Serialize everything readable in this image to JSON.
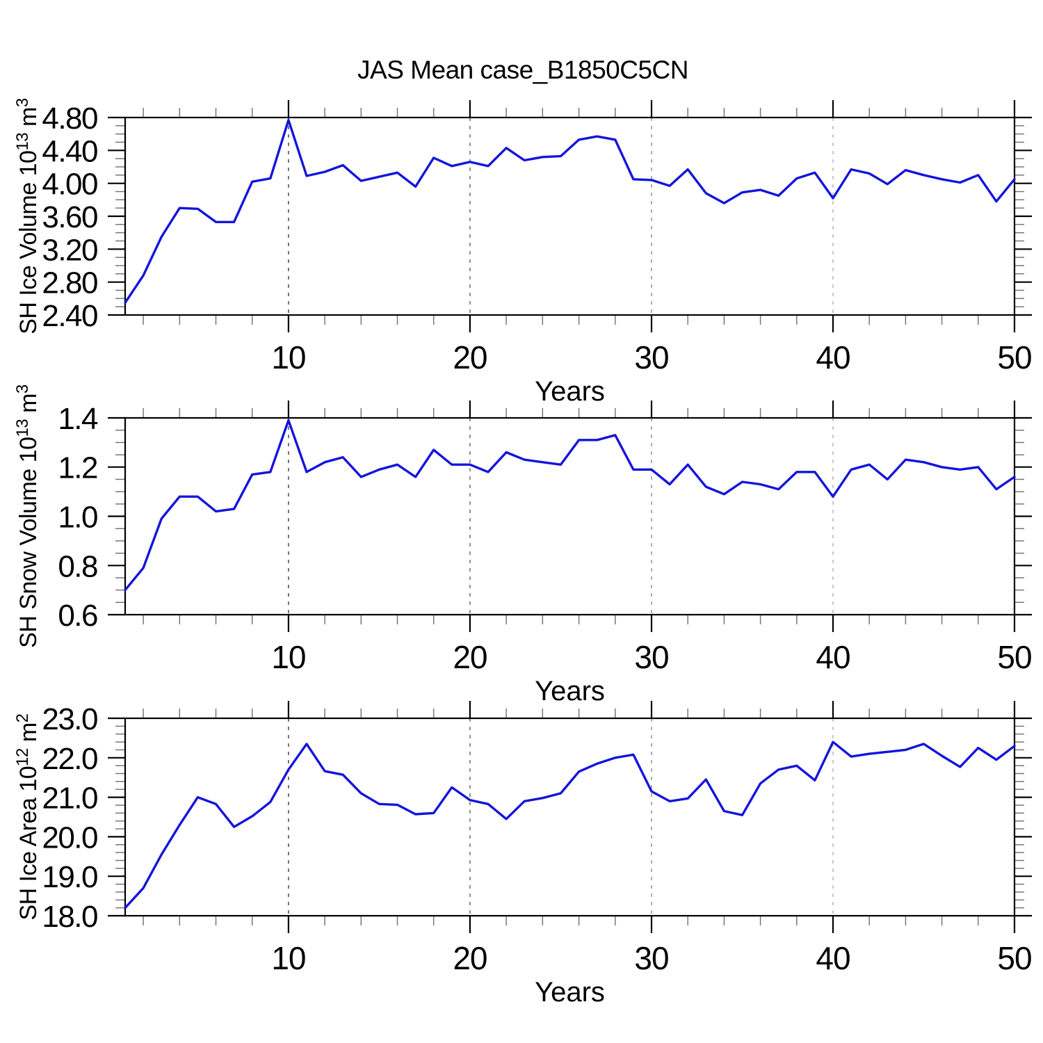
{
  "title": "JAS Mean case_B1850C5CN",
  "line_color": "#1414dd",
  "axis_color": "#000000",
  "minor_tick_color": "#777777",
  "x_axis": {
    "label": "Years",
    "years": [
      1,
      2,
      3,
      4,
      5,
      6,
      7,
      8,
      9,
      10,
      11,
      12,
      13,
      14,
      15,
      16,
      17,
      18,
      19,
      20,
      21,
      22,
      23,
      24,
      25,
      26,
      27,
      28,
      29,
      30,
      31,
      32,
      33,
      34,
      35,
      36,
      37,
      38,
      39,
      40,
      41,
      42,
      43,
      44,
      45,
      46,
      47,
      48,
      49,
      50
    ],
    "range": [
      1,
      50
    ],
    "major_ticks": [
      10,
      20,
      30,
      40,
      50
    ],
    "minor_tick_step": 2,
    "gridline_years": [
      10,
      20,
      30,
      40
    ],
    "gridline_colors": [
      "#555555",
      "#777777",
      "#999999",
      "#bbbbbb"
    ]
  },
  "chart_data": [
    {
      "type": "line",
      "name": "ice-volume",
      "title": "JAS Mean case_B1850C5CN",
      "xlabel": "Years",
      "ylabel": "SH Ice Volume 10^13 m^3",
      "ylabel_rich": [
        {
          "t": "SH Ice Volume 10"
        },
        {
          "t": "13",
          "sup": true
        },
        {
          "t": " m"
        },
        {
          "t": "3",
          "sup": true
        }
      ],
      "ylim": [
        2.4,
        4.8
      ],
      "ytick_major_step": 0.4,
      "ytick_minor_step": 0.1,
      "ytick_decimals": 2,
      "grid": "vertical-dashed",
      "legend": "none",
      "values": [
        2.55,
        2.88,
        3.35,
        3.7,
        3.69,
        3.53,
        3.53,
        4.02,
        4.06,
        4.77,
        4.09,
        4.14,
        4.22,
        4.03,
        4.08,
        4.13,
        3.96,
        4.31,
        4.21,
        4.26,
        4.21,
        4.43,
        4.28,
        4.32,
        4.33,
        4.53,
        4.57,
        4.53,
        4.05,
        4.04,
        3.97,
        4.17,
        3.88,
        3.76,
        3.89,
        3.92,
        3.85,
        4.06,
        4.13,
        3.82,
        4.17,
        4.12,
        3.99,
        4.16,
        4.1,
        4.05,
        4.01,
        4.1,
        3.78,
        4.05
      ]
    },
    {
      "type": "line",
      "name": "snow-volume",
      "title": "",
      "xlabel": "Years",
      "ylabel": "SH Snow Volume 10^13 m^3",
      "ylabel_rich": [
        {
          "t": "SH Snow Volume 10"
        },
        {
          "t": "13",
          "sup": true
        },
        {
          "t": " m"
        },
        {
          "t": "3",
          "sup": true
        }
      ],
      "ylim": [
        0.6,
        1.4
      ],
      "ytick_major_step": 0.2,
      "ytick_minor_step": 0.05,
      "ytick_decimals": 1,
      "grid": "vertical-dashed",
      "legend": "none",
      "values": [
        0.7,
        0.79,
        0.99,
        1.08,
        1.08,
        1.02,
        1.03,
        1.17,
        1.18,
        1.39,
        1.18,
        1.22,
        1.24,
        1.16,
        1.19,
        1.21,
        1.16,
        1.27,
        1.21,
        1.21,
        1.18,
        1.26,
        1.23,
        1.22,
        1.21,
        1.31,
        1.31,
        1.33,
        1.19,
        1.19,
        1.13,
        1.21,
        1.12,
        1.09,
        1.14,
        1.13,
        1.11,
        1.18,
        1.18,
        1.08,
        1.19,
        1.21,
        1.15,
        1.23,
        1.22,
        1.2,
        1.19,
        1.2,
        1.11,
        1.16
      ]
    },
    {
      "type": "line",
      "name": "ice-area",
      "title": "",
      "xlabel": "Years",
      "ylabel": "SH Ice Area 10^12 m^2",
      "ylabel_rich": [
        {
          "t": "SH Ice Area 10"
        },
        {
          "t": "12",
          "sup": true
        },
        {
          "t": " m"
        },
        {
          "t": "2",
          "sup": true
        }
      ],
      "ylim": [
        18.0,
        23.0
      ],
      "ytick_major_step": 1.0,
      "ytick_minor_step": 0.2,
      "ytick_decimals": 1,
      "grid": "vertical-dashed",
      "legend": "none",
      "values": [
        18.2,
        18.7,
        19.55,
        20.3,
        21.0,
        20.83,
        20.25,
        20.52,
        20.88,
        21.7,
        22.35,
        21.66,
        21.57,
        21.1,
        20.83,
        20.81,
        20.57,
        20.6,
        21.25,
        20.93,
        20.83,
        20.45,
        20.9,
        20.98,
        21.1,
        21.65,
        21.85,
        22.0,
        22.08,
        21.15,
        20.9,
        20.97,
        21.45,
        20.65,
        20.55,
        21.35,
        21.7,
        21.8,
        21.43,
        22.4,
        22.03,
        22.1,
        22.15,
        22.2,
        22.35,
        22.05,
        21.77,
        22.25,
        21.95,
        22.3
      ]
    }
  ]
}
